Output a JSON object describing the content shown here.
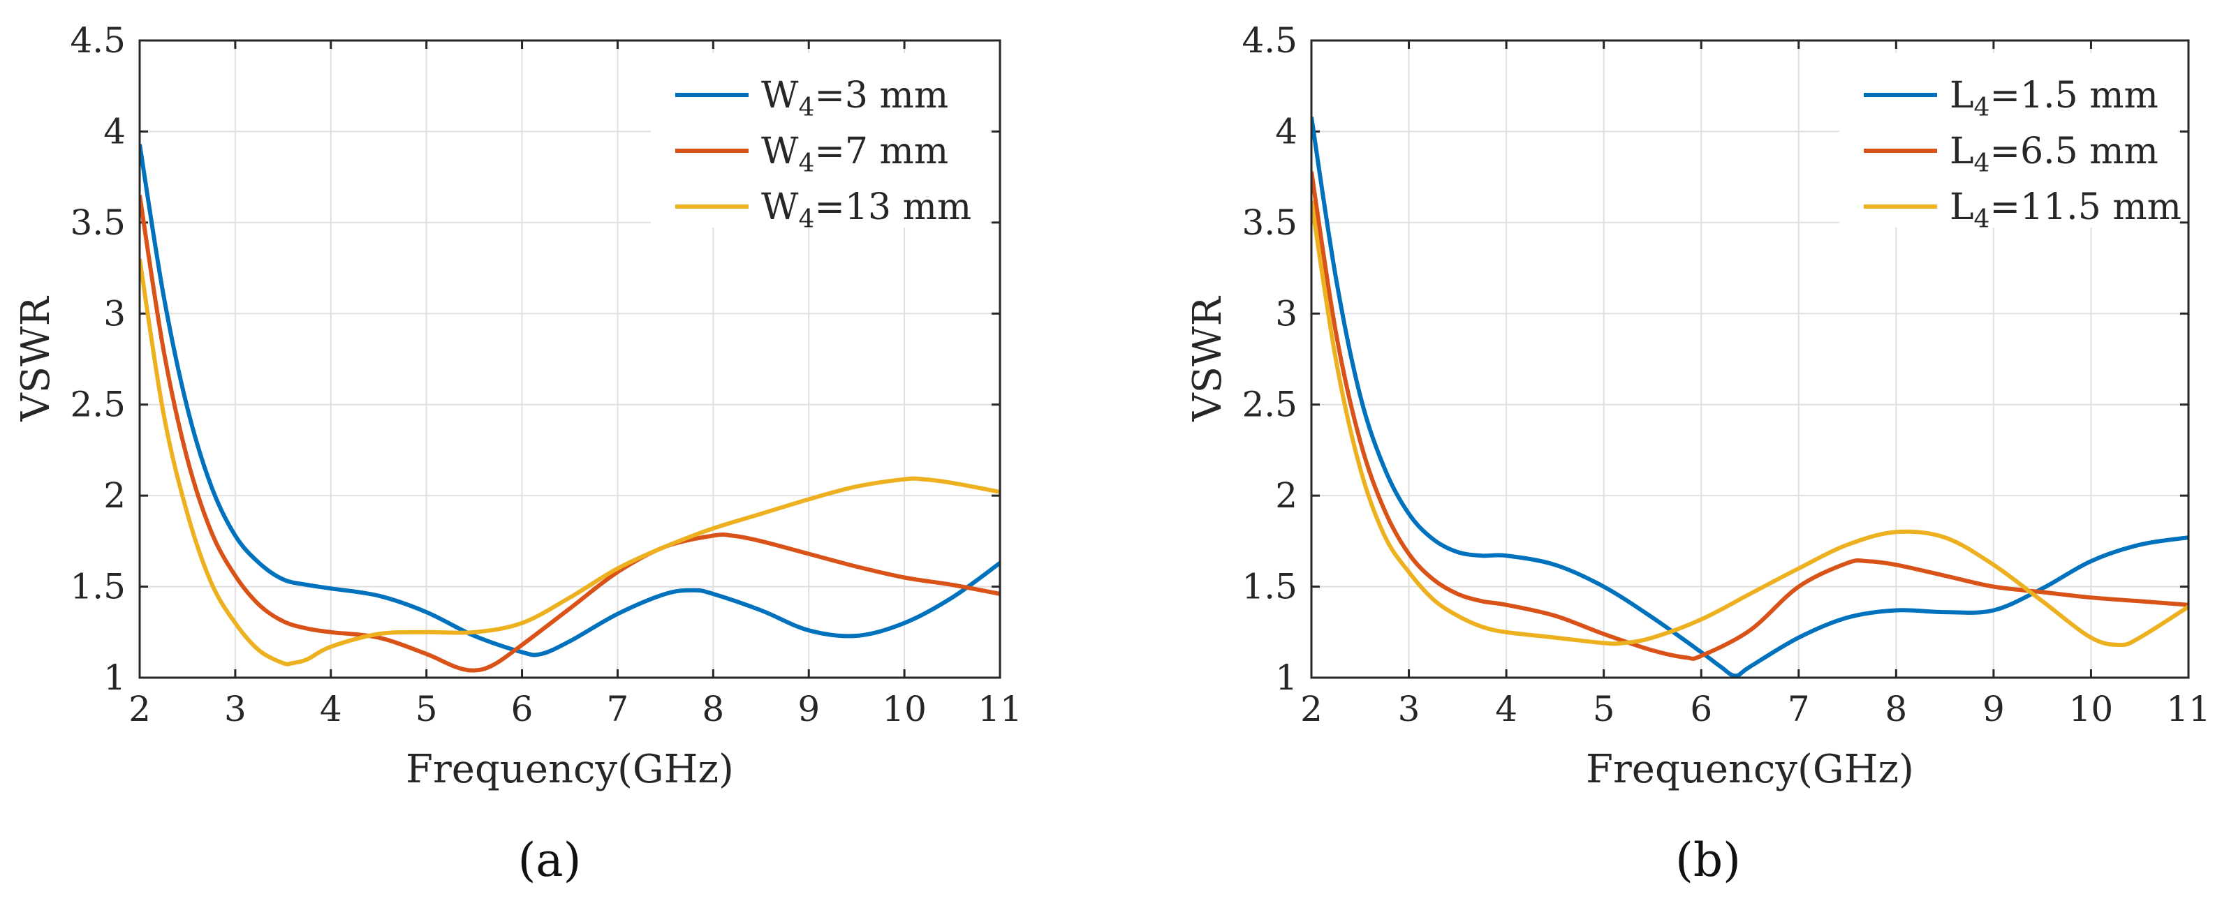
{
  "chart_data": [
    {
      "panel": "(a)",
      "type": "line",
      "xlabel": "Frequency(GHz)",
      "ylabel": "VSWR",
      "xlim": [
        2,
        11
      ],
      "ylim": [
        1,
        4.5
      ],
      "xticks": [
        2,
        3,
        4,
        5,
        6,
        7,
        8,
        9,
        10,
        11
      ],
      "yticks": [
        1,
        1.5,
        2,
        2.5,
        3,
        3.5,
        4,
        4.5
      ],
      "ytick_labels": [
        "1",
        "1.5",
        "2",
        "2.5",
        "3",
        "3.5",
        "4",
        "4.5"
      ],
      "grid": true,
      "legend_position": "top-right",
      "series": [
        {
          "name": "W",
          "sub": "4",
          "suffix": "=3 mm",
          "color": "#0072BD",
          "x": [
            2.0,
            2.25,
            2.5,
            2.75,
            3.0,
            3.25,
            3.5,
            3.75,
            4.0,
            4.5,
            5.0,
            5.5,
            6.0,
            6.2,
            6.5,
            7.0,
            7.5,
            7.8,
            8.0,
            8.5,
            9.0,
            9.5,
            10.0,
            10.5,
            11.0
          ],
          "y": [
            3.93,
            3.1,
            2.48,
            2.05,
            1.78,
            1.63,
            1.54,
            1.51,
            1.49,
            1.45,
            1.36,
            1.23,
            1.14,
            1.13,
            1.2,
            1.35,
            1.46,
            1.48,
            1.46,
            1.37,
            1.26,
            1.23,
            1.3,
            1.44,
            1.63
          ]
        },
        {
          "name": "W",
          "sub": "4",
          "suffix": "=7 mm",
          "color": "#D95319",
          "x": [
            2.0,
            2.25,
            2.5,
            2.75,
            3.0,
            3.25,
            3.5,
            3.75,
            4.0,
            4.5,
            5.0,
            5.3,
            5.5,
            5.7,
            6.0,
            6.5,
            7.0,
            7.5,
            8.0,
            8.2,
            8.5,
            9.0,
            9.5,
            10.0,
            10.5,
            11.0
          ],
          "y": [
            3.65,
            2.8,
            2.2,
            1.8,
            1.56,
            1.4,
            1.31,
            1.27,
            1.25,
            1.22,
            1.13,
            1.06,
            1.04,
            1.07,
            1.18,
            1.38,
            1.58,
            1.72,
            1.78,
            1.78,
            1.75,
            1.68,
            1.61,
            1.55,
            1.51,
            1.46
          ]
        },
        {
          "name": "W",
          "sub": "4",
          "suffix": "=13 mm",
          "color": "#EDB120",
          "x": [
            2.0,
            2.25,
            2.5,
            2.75,
            3.0,
            3.25,
            3.5,
            3.6,
            3.75,
            4.0,
            4.5,
            5.0,
            5.5,
            6.0,
            6.5,
            7.0,
            7.5,
            8.0,
            8.5,
            9.0,
            9.5,
            10.0,
            10.2,
            10.5,
            11.0
          ],
          "y": [
            3.3,
            2.45,
            1.9,
            1.52,
            1.3,
            1.15,
            1.08,
            1.08,
            1.1,
            1.17,
            1.24,
            1.25,
            1.25,
            1.3,
            1.44,
            1.6,
            1.72,
            1.82,
            1.9,
            1.98,
            2.05,
            2.09,
            2.09,
            2.07,
            2.02
          ]
        }
      ]
    },
    {
      "panel": "(b)",
      "type": "line",
      "xlabel": "Frequency(GHz)",
      "ylabel": "VSWR",
      "xlim": [
        2,
        11
      ],
      "ylim": [
        1,
        4.5
      ],
      "xticks": [
        2,
        3,
        4,
        5,
        6,
        7,
        8,
        9,
        10,
        11
      ],
      "yticks": [
        1,
        1.5,
        2,
        2.5,
        3,
        3.5,
        4,
        4.5
      ],
      "ytick_labels": [
        "1",
        "1.5",
        "2",
        "2.5",
        "3",
        "3.5",
        "4",
        "4.5"
      ],
      "grid": true,
      "legend_position": "top-right",
      "series": [
        {
          "name": "L",
          "sub": "4",
          "suffix": "=1.5 mm",
          "color": "#0072BD",
          "x": [
            2.0,
            2.25,
            2.5,
            2.75,
            3.0,
            3.25,
            3.5,
            3.75,
            4.0,
            4.5,
            5.0,
            5.5,
            6.0,
            6.2,
            6.35,
            6.5,
            7.0,
            7.5,
            8.0,
            8.5,
            9.0,
            9.5,
            10.0,
            10.5,
            11.0
          ],
          "y": [
            4.08,
            3.2,
            2.55,
            2.15,
            1.9,
            1.76,
            1.69,
            1.67,
            1.67,
            1.62,
            1.5,
            1.33,
            1.14,
            1.06,
            1.01,
            1.06,
            1.22,
            1.33,
            1.37,
            1.36,
            1.37,
            1.49,
            1.64,
            1.73,
            1.77
          ]
        },
        {
          "name": "L",
          "sub": "4",
          "suffix": "=6.5 mm",
          "color": "#D95319",
          "x": [
            2.0,
            2.25,
            2.5,
            2.75,
            3.0,
            3.25,
            3.5,
            3.75,
            4.0,
            4.5,
            5.0,
            5.5,
            5.85,
            6.0,
            6.5,
            7.0,
            7.5,
            7.7,
            8.0,
            8.5,
            9.0,
            9.5,
            10.0,
            10.5,
            11.0
          ],
          "y": [
            3.78,
            2.9,
            2.3,
            1.92,
            1.68,
            1.54,
            1.46,
            1.42,
            1.4,
            1.34,
            1.24,
            1.15,
            1.11,
            1.12,
            1.26,
            1.5,
            1.63,
            1.64,
            1.62,
            1.56,
            1.5,
            1.47,
            1.44,
            1.42,
            1.4
          ]
        },
        {
          "name": "L",
          "sub": "4",
          "suffix": "=11.5 mm",
          "color": "#EDB120",
          "x": [
            2.0,
            2.25,
            2.5,
            2.75,
            3.0,
            3.25,
            3.5,
            3.75,
            4.0,
            4.5,
            5.0,
            5.2,
            5.5,
            6.0,
            6.5,
            7.0,
            7.5,
            8.0,
            8.5,
            9.0,
            9.5,
            10.0,
            10.3,
            10.5,
            11.0
          ],
          "y": [
            3.62,
            2.75,
            2.15,
            1.78,
            1.58,
            1.43,
            1.34,
            1.28,
            1.25,
            1.22,
            1.19,
            1.19,
            1.22,
            1.32,
            1.46,
            1.6,
            1.73,
            1.8,
            1.77,
            1.62,
            1.42,
            1.22,
            1.18,
            1.22,
            1.39
          ]
        }
      ]
    }
  ]
}
